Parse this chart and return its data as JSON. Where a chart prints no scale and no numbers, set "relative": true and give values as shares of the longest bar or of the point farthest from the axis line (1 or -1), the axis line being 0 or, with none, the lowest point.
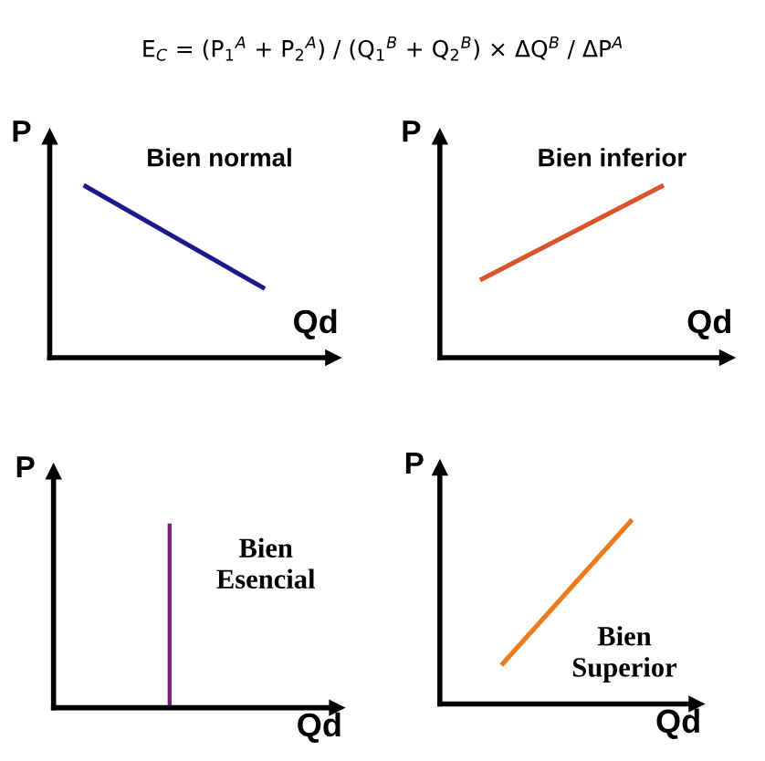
{
  "chart_data": [
    {
      "type": "line",
      "relative": true,
      "xlabel": "Qd",
      "ylabel": "P",
      "categories": [
        null,
        null
      ],
      "annotations": [
        "E$_{C}$ = (P$_{1}$$^{A}$ + P$_{2}$$^{A}$) / (Q$_{1}$$^{B}$ + Q$_{2}$$^{B}$) × ΔQ$^{B}$ / ΔP$^{A}$",
        "Bien normal"
      ],
      "series": [
        {
          "color": "#1a1a8c",
          "values": [
            1,
            0.4
          ]
        }
      ]
    },
    {
      "type": "line",
      "relative": true,
      "xlabel": "Qd",
      "ylabel": "P",
      "categories": [
        null,
        null
      ],
      "annotations": [
        "Bien inferior"
      ],
      "series": [
        {
          "color": "#d9532b",
          "values": [
            0.45,
            1
          ]
        }
      ]
    },
    {
      "type": "bar",
      "relative": true,
      "xlabel": "Qd",
      "ylabel": "P",
      "categories": [
        null
      ],
      "annotations": [
        "Bien\nEsencial"
      ],
      "series": [
        {
          "color": "#7b1f7f",
          "values": [
            1
          ]
        }
      ]
    },
    {
      "type": "line",
      "relative": true,
      "xlabel": "Qd",
      "ylabel": "P",
      "categories": [
        null,
        null
      ],
      "annotations": [
        "Bien\nSuperior"
      ],
      "series": [
        {
          "color": "#ee7a1e",
          "values": [
            0.21,
            1
          ]
        }
      ]
    }
  ]
}
